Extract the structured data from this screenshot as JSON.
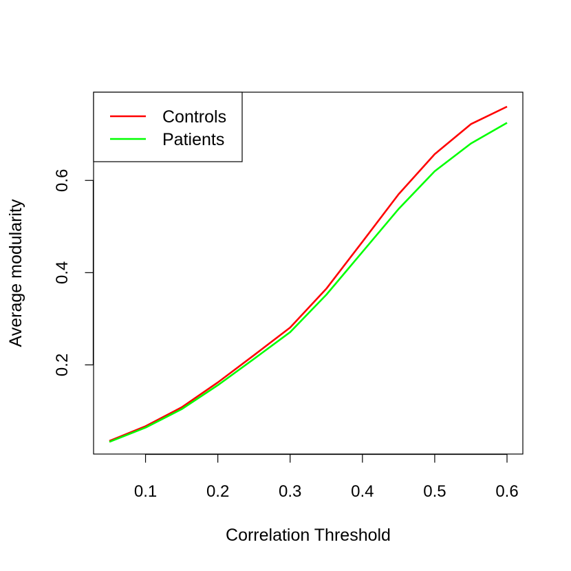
{
  "chart_data": {
    "type": "line",
    "title": "",
    "xlabel": "Correlation Threshold",
    "ylabel": "Average modularity",
    "x": [
      0.05,
      0.1,
      0.15,
      0.2,
      0.25,
      0.3,
      0.35,
      0.4,
      0.45,
      0.5,
      0.55,
      0.6
    ],
    "xlim": [
      0.05,
      0.6
    ],
    "ylim": [
      0.035,
      0.76
    ],
    "x_ticks": [
      0.1,
      0.2,
      0.3,
      0.4,
      0.5,
      0.6
    ],
    "x_tick_labels": [
      "0.1",
      "0.2",
      "0.3",
      "0.4",
      "0.5",
      "0.6"
    ],
    "y_ticks": [
      0.2,
      0.4,
      0.6
    ],
    "y_tick_labels": [
      "0.2",
      "0.4",
      "0.6"
    ],
    "grid": false,
    "legend_position": "top-left",
    "series": [
      {
        "name": "Controls",
        "color": "#ff0000",
        "values": [
          0.035,
          0.067,
          0.108,
          0.162,
          0.221,
          0.281,
          0.365,
          0.467,
          0.57,
          0.657,
          0.722,
          0.76
        ]
      },
      {
        "name": "Patients",
        "color": "#00ff00",
        "values": [
          0.033,
          0.064,
          0.104,
          0.156,
          0.213,
          0.271,
          0.352,
          0.445,
          0.538,
          0.62,
          0.68,
          0.725
        ]
      }
    ]
  }
}
